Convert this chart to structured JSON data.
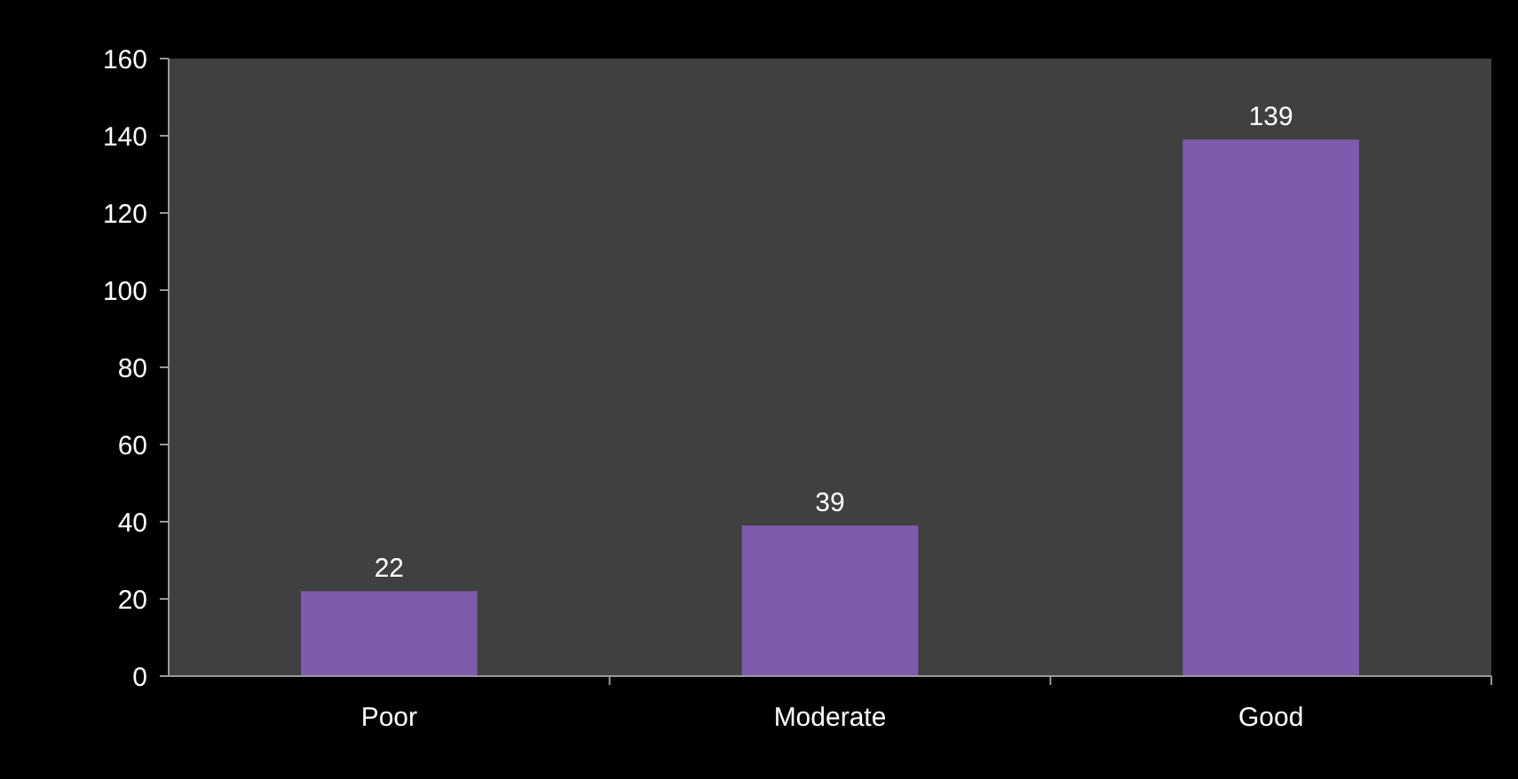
{
  "chart_data": {
    "type": "bar",
    "categories": [
      "Poor",
      "Moderate",
      "Good"
    ],
    "values": [
      22,
      39,
      139
    ],
    "color": "#7d5cae",
    "ylim": [
      0,
      160
    ],
    "yticks": [
      0,
      20,
      40,
      60,
      80,
      100,
      120,
      140,
      160
    ],
    "grid": false,
    "data_labels": true
  }
}
